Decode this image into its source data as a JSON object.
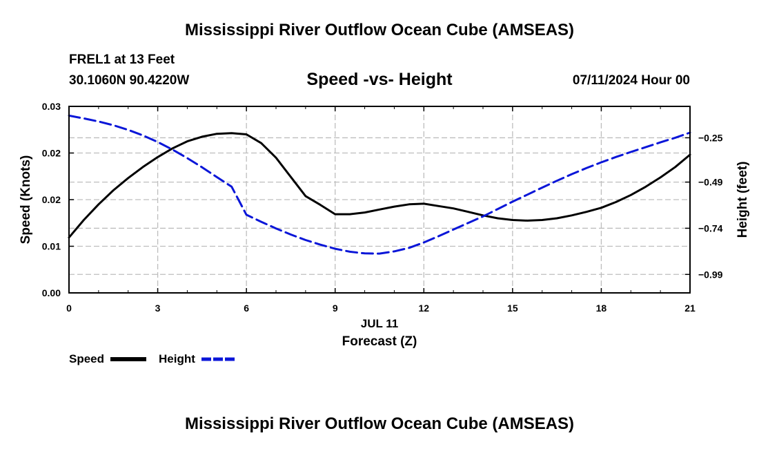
{
  "chart_data": {
    "type": "line",
    "title": "Mississippi River Outflow Ocean Cube (AMSEAS)",
    "station": "FREL1 at 13 Feet",
    "location": "30.1060N  90.4220W",
    "subtitle": "Speed -vs- Height",
    "datetime": "07/11/2024 Hour 00",
    "xlabel": "Forecast (Z)",
    "date_label": "JUL 11",
    "ylabel_left": "Speed (Knots)",
    "ylabel_right": "Height (feet)",
    "xlim": [
      0,
      21
    ],
    "ylim_left": [
      0,
      0.032
    ],
    "ylim_right": [
      -1.09,
      -0.08
    ],
    "x_ticks": [
      0,
      3,
      6,
      9,
      12,
      15,
      18,
      21
    ],
    "x_tick_labels": [
      "0",
      "3",
      "6",
      "9",
      "12",
      "15",
      "18",
      "21"
    ],
    "left_ticks": [
      0.0,
      0.008,
      0.016,
      0.024,
      0.032
    ],
    "left_tick_labels": [
      "0.00",
      "0.01",
      "0.02",
      "0.02",
      "0.03"
    ],
    "right_ticks": [
      -0.25,
      -0.49,
      -0.74,
      -0.99
    ],
    "right_tick_labels": [
      "−0.25",
      "−0.49",
      "−0.74",
      "−0.99"
    ],
    "grid": true,
    "legend_position": "bottom-left",
    "series": [
      {
        "name": "Speed",
        "axis": "left",
        "color": "#000000",
        "style": "solid",
        "x": [
          0,
          0.5,
          1,
          1.5,
          2,
          2.5,
          3,
          3.5,
          4,
          4.5,
          5,
          5.5,
          6,
          6.5,
          7,
          7.5,
          8,
          8.5,
          9,
          9.5,
          10,
          10.5,
          11,
          11.5,
          12,
          12.5,
          13,
          13.5,
          14,
          14.5,
          15,
          15.5,
          16,
          16.5,
          17,
          17.5,
          18,
          18.5,
          19,
          19.5,
          20,
          20.5,
          21
        ],
        "values": [
          0.0095,
          0.0125,
          0.0152,
          0.0176,
          0.0197,
          0.0216,
          0.0233,
          0.0248,
          0.026,
          0.0268,
          0.0273,
          0.0274,
          0.0272,
          0.0257,
          0.0232,
          0.0199,
          0.0166,
          0.0151,
          0.0135,
          0.0135,
          0.0138,
          0.0143,
          0.0148,
          0.0152,
          0.0153,
          0.0149,
          0.0145,
          0.0139,
          0.0133,
          0.0128,
          0.0125,
          0.0124,
          0.0125,
          0.0128,
          0.0133,
          0.0139,
          0.0146,
          0.0156,
          0.0168,
          0.0182,
          0.0198,
          0.0216,
          0.0237
        ]
      },
      {
        "name": "Height",
        "axis": "right",
        "color": "#0a16d8",
        "style": "dashed",
        "x": [
          0,
          0.5,
          1,
          1.5,
          2,
          2.5,
          3,
          3.5,
          4,
          4.5,
          5,
          5.5,
          6,
          6.5,
          7,
          7.5,
          8,
          8.5,
          9,
          9.5,
          10,
          10.5,
          11,
          11.5,
          12,
          12.5,
          13,
          13.5,
          14,
          14.5,
          15,
          15.5,
          16,
          16.5,
          17,
          17.5,
          18,
          18.5,
          19,
          19.5,
          20,
          20.5,
          21
        ],
        "values": [
          -0.13,
          -0.145,
          -0.162,
          -0.182,
          -0.207,
          -0.237,
          -0.273,
          -0.314,
          -0.36,
          -0.41,
          -0.463,
          -0.515,
          -0.667,
          -0.705,
          -0.741,
          -0.774,
          -0.804,
          -0.829,
          -0.851,
          -0.867,
          -0.876,
          -0.877,
          -0.865,
          -0.846,
          -0.817,
          -0.783,
          -0.747,
          -0.711,
          -0.676,
          -0.636,
          -0.596,
          -0.558,
          -0.52,
          -0.483,
          -0.447,
          -0.414,
          -0.383,
          -0.354,
          -0.327,
          -0.301,
          -0.275,
          -0.25,
          -0.222
        ]
      }
    ]
  },
  "footer_title": "Mississippi River Outflow Ocean Cube (AMSEAS)"
}
